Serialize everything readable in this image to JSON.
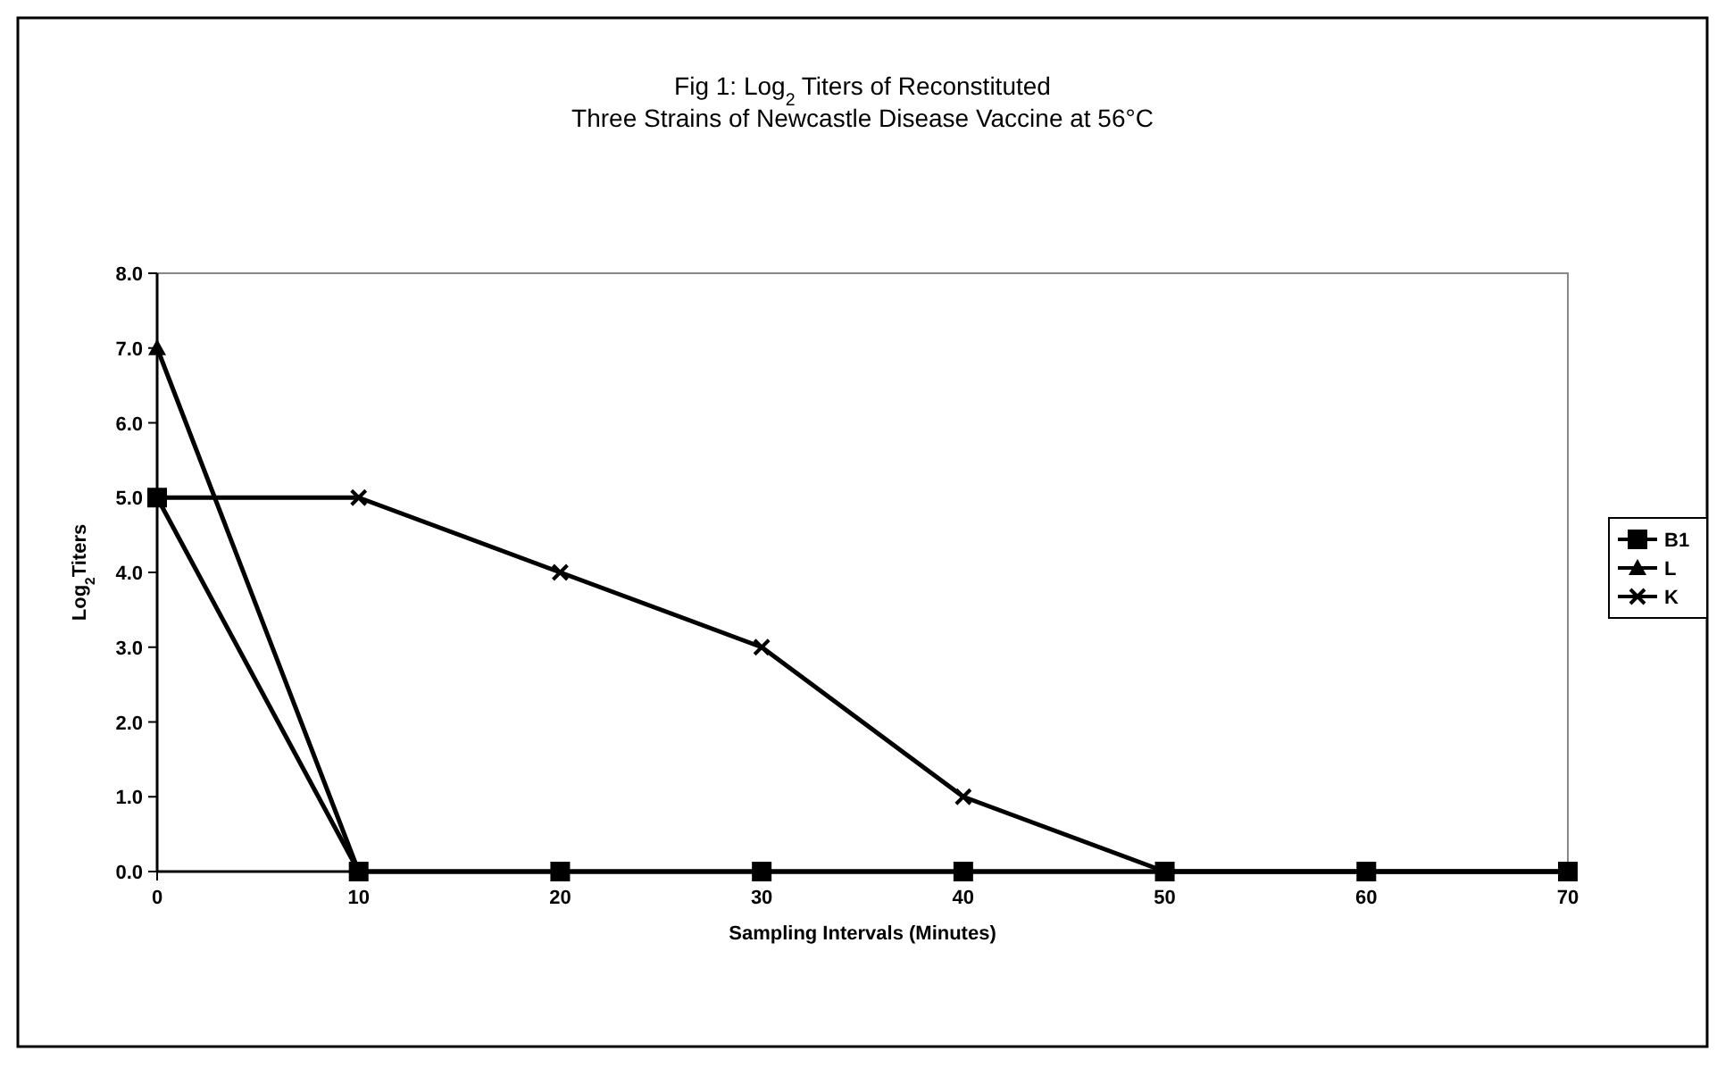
{
  "chart_data": {
    "type": "line",
    "title": "Fig 1:  Log$_{2}$ Titers of Reconstituted",
    "subtitle": "Three Strains of Newcastle Disease Vaccine at 56°C",
    "xlabel": "Sampling Intervals (Minutes)",
    "ylabel": "Log$_{2}$Titers",
    "x": [
      0,
      10,
      20,
      30,
      40,
      50,
      60,
      70
    ],
    "xlim": [
      0,
      70
    ],
    "xticks": [
      0,
      10,
      20,
      30,
      40,
      50,
      60,
      70
    ],
    "ylim": [
      0,
      8
    ],
    "yticks": [
      {
        "value": 0,
        "label": "0.0"
      },
      {
        "value": 1,
        "label": "1.0"
      },
      {
        "value": 2,
        "label": "2.0"
      },
      {
        "value": 3,
        "label": "3.0"
      },
      {
        "value": 4,
        "label": "4.0"
      },
      {
        "value": 5,
        "label": "5.0"
      },
      {
        "value": 6,
        "label": "6.0"
      },
      {
        "value": 7,
        "label": "7.0"
      },
      {
        "value": 8,
        "label": "8.0"
      }
    ],
    "grid": false,
    "legend": "right",
    "line_style": "solid",
    "series": [
      {
        "name": "B1",
        "color": "#000000",
        "marker": "square",
        "values": [
          5,
          0,
          0,
          0,
          0,
          0,
          0,
          0
        ]
      },
      {
        "name": "L",
        "color": "#000000",
        "marker": "triangle",
        "values": [
          7,
          0,
          0,
          0,
          0,
          0,
          0,
          0
        ]
      },
      {
        "name": "K",
        "color": "#000000",
        "marker": "cross",
        "values": [
          5,
          5,
          4,
          3,
          1,
          0,
          0,
          0
        ]
      }
    ]
  }
}
